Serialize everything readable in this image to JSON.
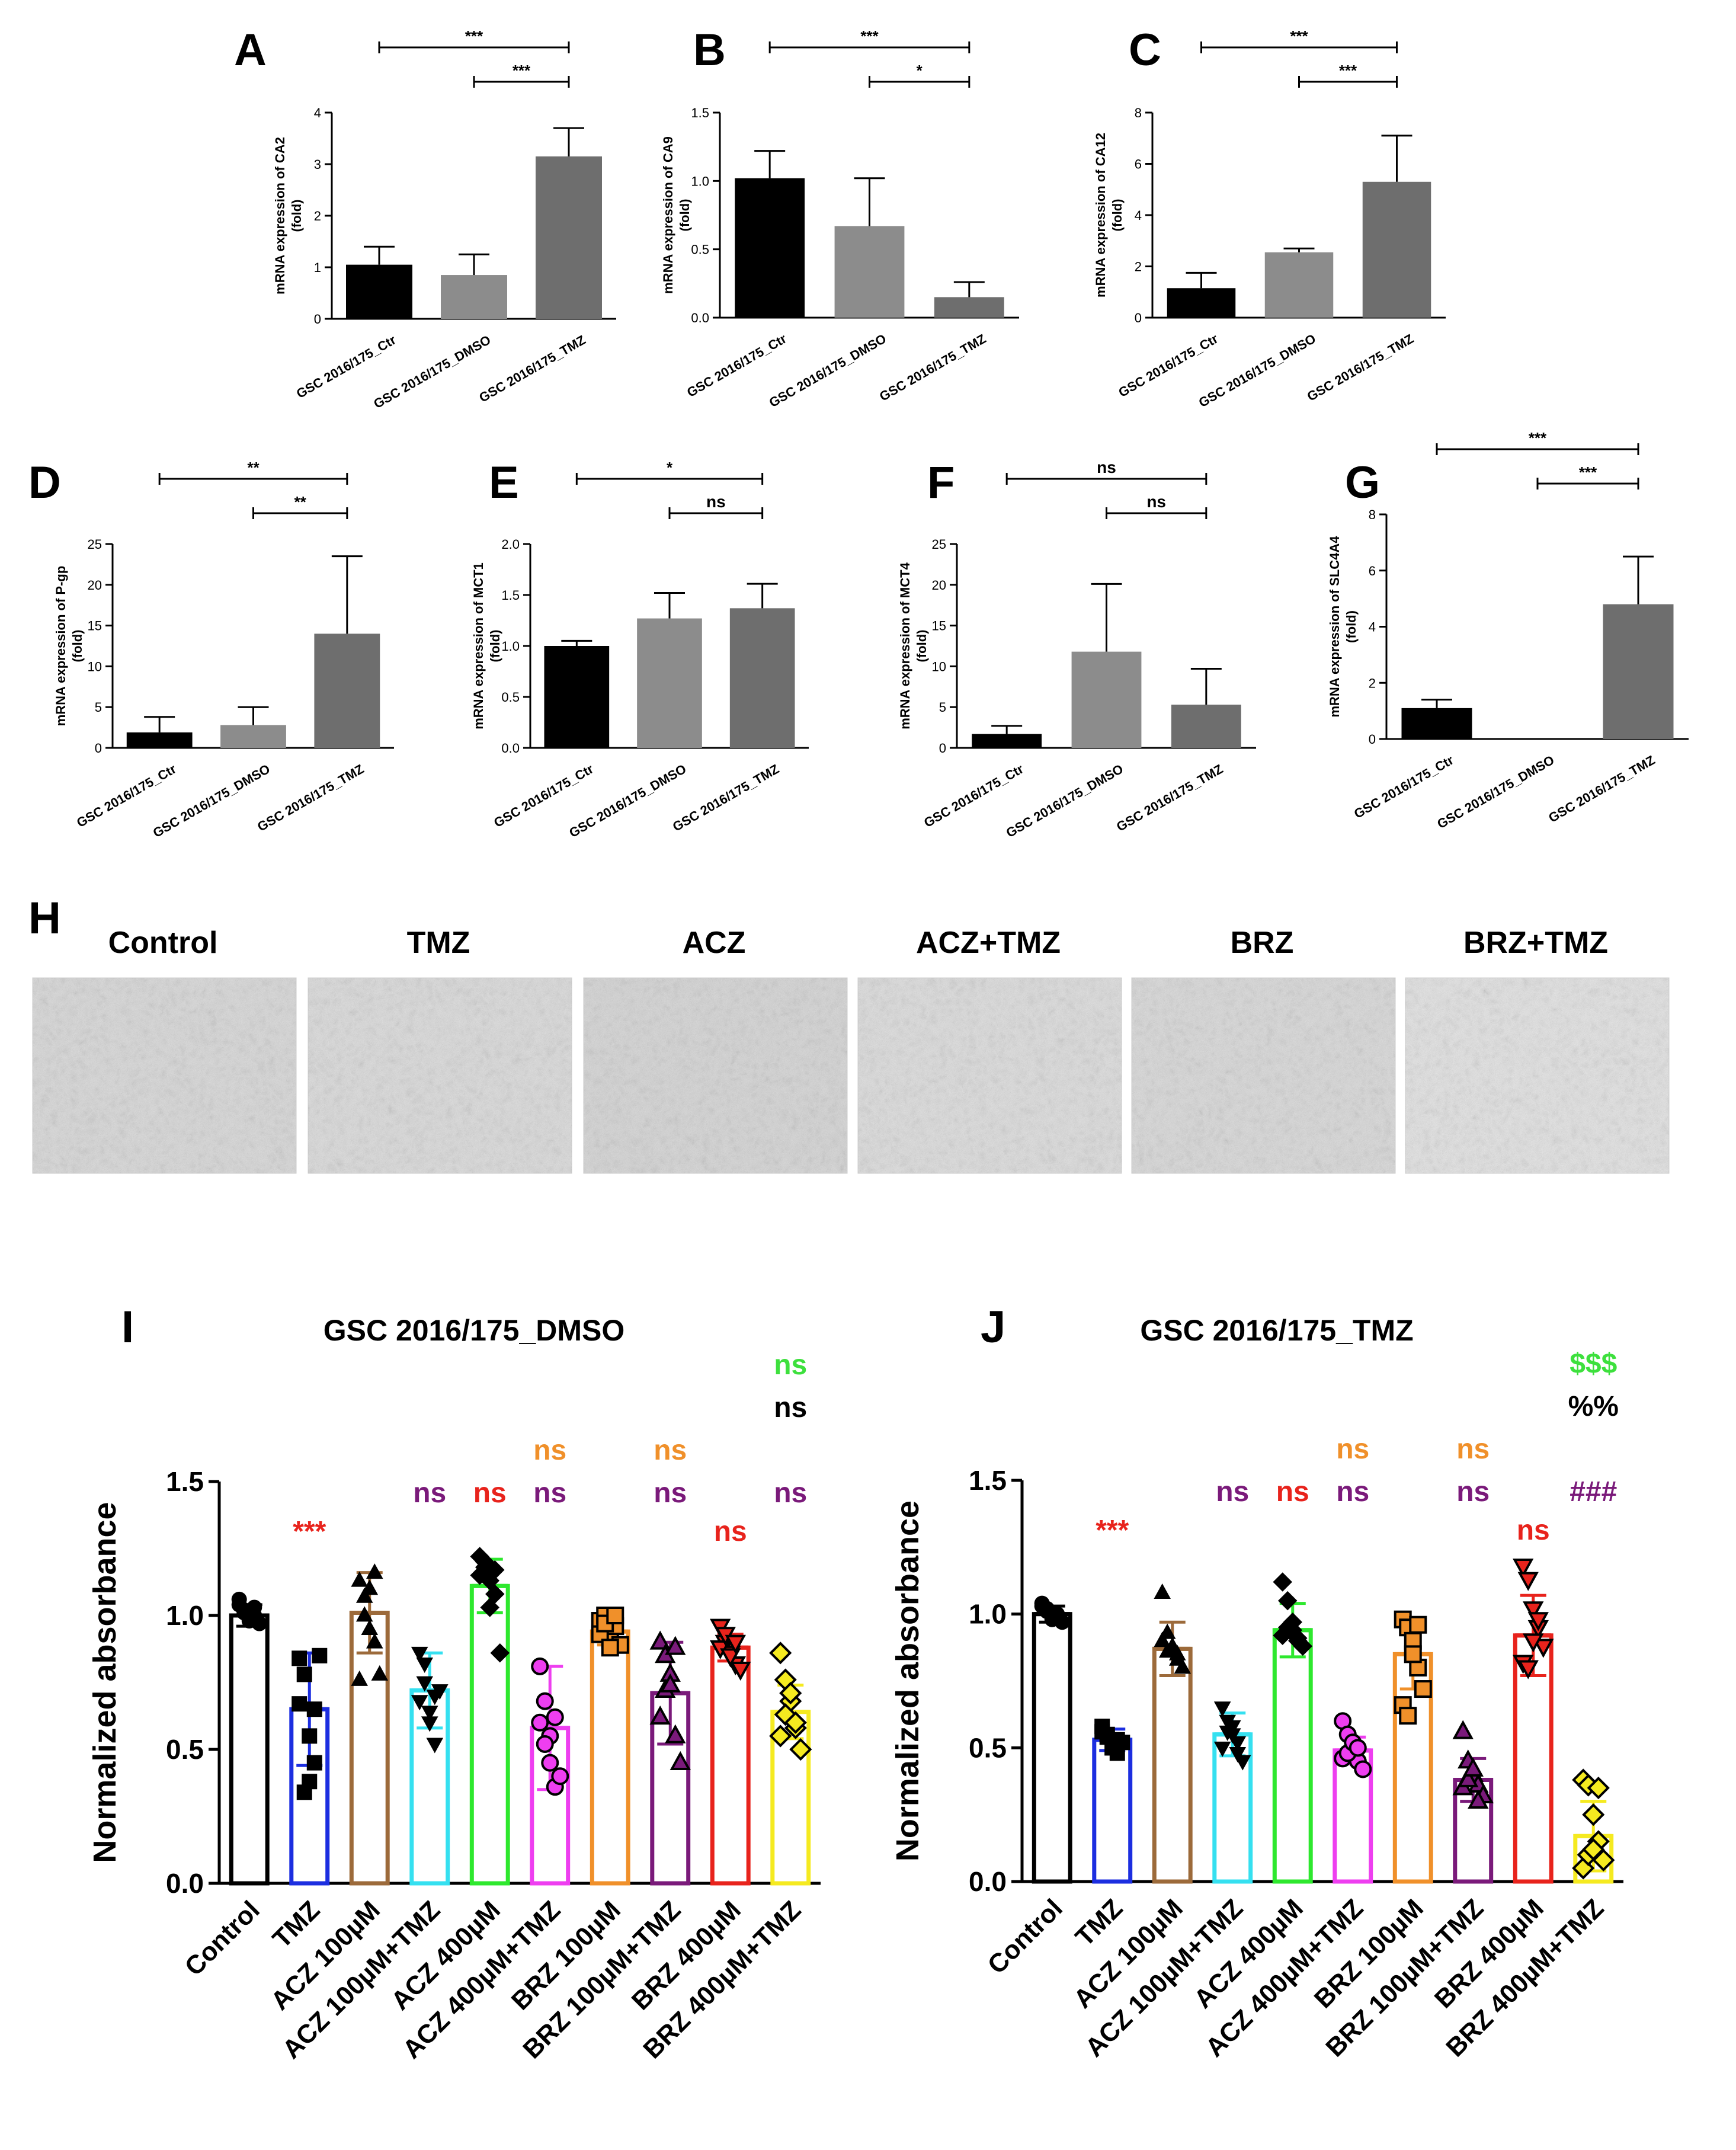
{
  "panel_h": {
    "letter": "H",
    "titles": [
      "Control",
      "TMZ",
      "ACZ",
      "ACZ+TMZ",
      "BRZ",
      "BRZ+TMZ"
    ],
    "photo_tones": [
      "#d9d9d9",
      "#dcdcdc",
      "#d6d6d6",
      "#dedede",
      "#dadada",
      "#e4e4e4"
    ]
  },
  "colors": {
    "dark": "#000000",
    "mid": "#8c8c8c",
    "light": "#6e6e6e",
    "red": "#e8231c",
    "green": "#3de03d",
    "orange": "#f0902a",
    "purple": "#7a1a7a",
    "i_bars": [
      "#000000",
      "#1c2ee0",
      "#9c6a3a",
      "#35e0f0",
      "#2ee82e",
      "#ee3ef0",
      "#f0902a",
      "#7a1a7a",
      "#e8231c",
      "#f5ea20"
    ]
  },
  "chart_data": [
    {
      "letter": "A",
      "type": "bar",
      "categories": [
        "GSC 2016/175_Ctr",
        "GSC 2016/175_DMSO",
        "GSC 2016/175_TMZ"
      ],
      "values": [
        1.05,
        0.85,
        3.15
      ],
      "errors": [
        0.35,
        0.4,
        0.55
      ],
      "ylabel": "mRNA expression of CA2",
      "ylabel2": "(fold)",
      "ylim": [
        0,
        4
      ],
      "yticks": [
        "0",
        "1",
        "2",
        "3",
        "4"
      ],
      "sig": [
        {
          "from": 0,
          "to": 2,
          "label": "***"
        },
        {
          "from": 1,
          "to": 2,
          "label": "***"
        }
      ]
    },
    {
      "letter": "B",
      "type": "bar",
      "categories": [
        "GSC 2016/175_Ctr",
        "GSC 2016/175_DMSO",
        "GSC 2016/175_TMZ"
      ],
      "values": [
        1.02,
        0.67,
        0.15
      ],
      "errors": [
        0.2,
        0.35,
        0.11
      ],
      "ylabel": "mRNA expression of CA9",
      "ylabel2": "(fold)",
      "ylim": [
        0,
        1.5
      ],
      "yticks": [
        "0.0",
        "0.5",
        "1.0",
        "1.5"
      ],
      "sig": [
        {
          "from": 0,
          "to": 2,
          "label": "***"
        },
        {
          "from": 1,
          "to": 2,
          "label": "*"
        }
      ]
    },
    {
      "letter": "C",
      "type": "bar",
      "categories": [
        "GSC 2016/175_Ctr",
        "GSC 2016/175_DMSO",
        "GSC 2016/175_TMZ"
      ],
      "values": [
        1.15,
        2.55,
        5.3
      ],
      "errors": [
        0.6,
        0.15,
        1.8
      ],
      "ylabel": "mRNA expression of CA12",
      "ylabel2": "(fold)",
      "ylim": [
        0,
        8
      ],
      "yticks": [
        "0",
        "2",
        "4",
        "6",
        "8"
      ],
      "sig": [
        {
          "from": 0,
          "to": 2,
          "label": "***"
        },
        {
          "from": 1,
          "to": 2,
          "label": "***"
        }
      ]
    },
    {
      "letter": "D",
      "type": "bar",
      "categories": [
        "GSC 2016/175_Ctr",
        "GSC 2016/175_DMSO",
        "GSC 2016/175_TMZ"
      ],
      "values": [
        1.9,
        2.8,
        14.0
      ],
      "errors": [
        1.9,
        2.2,
        9.5
      ],
      "ylabel": "mRNA expression of P-gp",
      "ylabel2": "(fold)",
      "ylim": [
        0,
        25
      ],
      "yticks": [
        "0",
        "5",
        "10",
        "15",
        "20",
        "25"
      ],
      "sig": [
        {
          "from": 0,
          "to": 2,
          "label": "**"
        },
        {
          "from": 1,
          "to": 2,
          "label": "**"
        }
      ]
    },
    {
      "letter": "E",
      "type": "bar",
      "categories": [
        "GSC 2016/175_Ctr",
        "GSC 2016/175_DMSO",
        "GSC 2016/175_TMZ"
      ],
      "values": [
        1.0,
        1.27,
        1.37
      ],
      "errors": [
        0.05,
        0.25,
        0.24
      ],
      "ylabel": "mRNA expression of MCT1",
      "ylabel2": "(fold)",
      "ylim": [
        0,
        2
      ],
      "yticks": [
        "0.0",
        "0.5",
        "1.0",
        "1.5",
        "2.0"
      ],
      "sig": [
        {
          "from": 0,
          "to": 2,
          "label": "*"
        },
        {
          "from": 1,
          "to": 2,
          "label": "ns"
        }
      ]
    },
    {
      "letter": "F",
      "type": "bar",
      "categories": [
        "GSC 2016/175_Ctr",
        "GSC 2016/175_DMSO",
        "GSC 2016/175_TMZ"
      ],
      "values": [
        1.7,
        11.8,
        5.3
      ],
      "errors": [
        1.0,
        8.3,
        4.4
      ],
      "ylabel": "mRNA expression of MCT4",
      "ylabel2": "(fold)",
      "ylim": [
        0,
        25
      ],
      "yticks": [
        "0",
        "5",
        "10",
        "15",
        "20",
        "25"
      ],
      "sig": [
        {
          "from": 0,
          "to": 2,
          "label": "ns"
        },
        {
          "from": 1,
          "to": 2,
          "label": "ns"
        }
      ]
    },
    {
      "letter": "G",
      "type": "bar",
      "categories": [
        "GSC 2016/175_Ctr",
        "GSC 2016/175_DMSO",
        "GSC 2016/175_TMZ"
      ],
      "values": [
        1.1,
        0.0,
        4.8
      ],
      "errors": [
        0.3,
        0.0,
        1.7
      ],
      "ylabel": "mRNA expression of SLC4A4",
      "ylabel2": "(fold)",
      "ylim": [
        0,
        8
      ],
      "yticks": [
        "0",
        "2",
        "4",
        "6",
        "8"
      ],
      "sig": [
        {
          "from": 0,
          "to": 2,
          "label": "***"
        },
        {
          "from": 1,
          "to": 2,
          "label": "***"
        }
      ]
    },
    {
      "letter": "I",
      "type": "bar",
      "title": "GSC 2016/175_DMSO",
      "ylabel": "Normalized absorbance",
      "ylim": [
        0,
        1.5
      ],
      "yticks": [
        "0.0",
        "0.5",
        "1.0",
        "1.5"
      ],
      "categories": [
        "Control",
        "TMZ",
        "ACZ 100µM",
        "ACZ 100µM+TMZ",
        "ACZ 400µM",
        "ACZ 400µM+TMZ",
        "BRZ 100µM",
        "BRZ 100µM+TMZ",
        "BRZ 400µM",
        "BRZ 400µM+TMZ"
      ],
      "values": [
        1.0,
        0.65,
        1.01,
        0.72,
        1.11,
        0.58,
        0.94,
        0.71,
        0.88,
        0.64
      ],
      "errors": [
        0.04,
        0.21,
        0.15,
        0.14,
        0.1,
        0.23,
        0.05,
        0.19,
        0.05,
        0.1
      ],
      "points": [
        [
          1.06,
          1.02,
          0.98,
          1.0,
          0.97,
          1.04,
          1.01,
          0.99,
          1.03
        ],
        [
          0.84,
          0.78,
          0.55,
          0.45,
          0.85,
          0.67,
          0.34,
          0.38,
          0.65
        ],
        [
          1.13,
          1.07,
          0.95,
          0.9,
          0.78,
          0.76,
          1.0,
          1.1,
          1.16
        ],
        [
          0.86,
          0.75,
          0.6,
          0.52,
          0.72,
          0.68,
          0.82,
          0.64,
          0.7
        ],
        [
          1.22,
          1.18,
          1.13,
          1.08,
          0.86,
          1.15,
          1.2,
          1.03,
          1.17
        ],
        [
          0.81,
          0.68,
          0.55,
          0.36,
          0.4,
          0.6,
          0.52,
          0.45,
          0.62
        ],
        [
          0.98,
          1.0,
          0.91,
          0.96,
          0.89,
          0.93,
          0.97,
          0.88,
          1.0
        ],
        [
          0.9,
          0.85,
          0.78,
          0.55,
          0.45,
          0.62,
          0.72,
          0.74,
          0.88
        ],
        [
          0.96,
          0.9,
          0.86,
          0.82,
          0.8,
          0.88,
          0.93,
          0.85,
          0.9
        ],
        [
          0.86,
          0.76,
          0.68,
          0.58,
          0.5,
          0.55,
          0.63,
          0.71,
          0.6
        ]
      ],
      "markers": [
        "circle",
        "square",
        "triangle",
        "triangle-down",
        "diamond",
        "circle",
        "square",
        "triangle",
        "triangle-down",
        "diamond"
      ],
      "annotations": [
        {
          "col": 1,
          "lines": [
            {
              "text": "***",
              "color": "red"
            }
          ]
        },
        {
          "col": 3,
          "lines": [
            {
              "text": "ns",
              "color": "purple"
            }
          ]
        },
        {
          "col": 4,
          "lines": [
            {
              "text": "ns",
              "color": "red"
            }
          ]
        },
        {
          "col": 5,
          "lines": [
            {
              "text": "ns",
              "color": "orange"
            },
            {
              "text": "ns",
              "color": "purple"
            }
          ]
        },
        {
          "col": 7,
          "lines": [
            {
              "text": "ns",
              "color": "orange"
            },
            {
              "text": "ns",
              "color": "purple"
            }
          ]
        },
        {
          "col": 8,
          "lines": [
            {
              "text": "ns",
              "color": "red"
            }
          ]
        },
        {
          "col": 9,
          "lines": [
            {
              "text": "ns",
              "color": "green"
            },
            {
              "text": "ns",
              "color": "dark"
            },
            {
              "text": "",
              "color": "dark"
            },
            {
              "text": "ns",
              "color": "purple"
            }
          ]
        }
      ]
    },
    {
      "letter": "J",
      "type": "bar",
      "title": "GSC 2016/175_TMZ",
      "ylabel": "Normalized absorbance",
      "ylim": [
        0,
        1.5
      ],
      "yticks": [
        "0.0",
        "0.5",
        "1.0",
        "1.5"
      ],
      "categories": [
        "Control",
        "TMZ",
        "ACZ 100µM",
        "ACZ 100µM+TMZ",
        "ACZ 400µM",
        "ACZ 400µM+TMZ",
        "BRZ 100µM",
        "BRZ 100µM+TMZ",
        "BRZ 400µM",
        "BRZ 400µM+TMZ"
      ],
      "values": [
        1.0,
        0.53,
        0.87,
        0.55,
        0.94,
        0.49,
        0.85,
        0.38,
        0.92,
        0.17
      ],
      "errors": [
        0.03,
        0.04,
        0.1,
        0.08,
        0.1,
        0.05,
        0.13,
        0.08,
        0.15,
        0.13
      ],
      "points": [
        [
          1.04,
          1.02,
          0.98,
          1.0,
          0.97,
          1.03,
          1.01,
          0.99,
          1.0
        ],
        [
          0.58,
          0.55,
          0.5,
          0.48,
          0.52,
          0.56,
          0.54,
          0.5,
          0.53
        ],
        [
          1.08,
          0.93,
          0.88,
          0.85,
          0.8,
          0.9,
          0.86,
          0.87,
          0.83
        ],
        [
          0.65,
          0.6,
          0.55,
          0.48,
          0.45,
          0.5,
          0.56,
          0.58,
          0.52
        ],
        [
          1.12,
          1.05,
          0.97,
          0.9,
          0.88,
          0.92,
          0.95,
          0.94,
          0.91
        ],
        [
          0.6,
          0.55,
          0.5,
          0.45,
          0.42,
          0.46,
          0.48,
          0.52,
          0.5
        ],
        [
          0.98,
          0.95,
          0.9,
          0.8,
          0.72,
          0.66,
          0.62,
          0.85,
          0.96
        ],
        [
          0.56,
          0.45,
          0.4,
          0.36,
          0.32,
          0.35,
          0.38,
          0.42,
          0.3
        ],
        [
          1.18,
          1.13,
          1.02,
          0.95,
          0.88,
          0.82,
          0.8,
          0.9,
          0.98
        ],
        [
          0.38,
          0.36,
          0.25,
          0.15,
          0.08,
          0.05,
          0.1,
          0.12,
          0.35
        ]
      ],
      "markers": [
        "circle",
        "square",
        "triangle",
        "triangle-down",
        "diamond",
        "circle",
        "square",
        "triangle",
        "triangle-down",
        "diamond"
      ],
      "annotations": [
        {
          "col": 1,
          "lines": [
            {
              "text": "***",
              "color": "red"
            }
          ]
        },
        {
          "col": 3,
          "lines": [
            {
              "text": "ns",
              "color": "purple"
            }
          ]
        },
        {
          "col": 4,
          "lines": [
            {
              "text": "ns",
              "color": "red"
            }
          ]
        },
        {
          "col": 5,
          "lines": [
            {
              "text": "ns",
              "color": "orange"
            },
            {
              "text": "ns",
              "color": "purple"
            }
          ]
        },
        {
          "col": 7,
          "lines": [
            {
              "text": "ns",
              "color": "orange"
            },
            {
              "text": "ns",
              "color": "purple"
            }
          ]
        },
        {
          "col": 8,
          "lines": [
            {
              "text": "ns",
              "color": "red"
            }
          ]
        },
        {
          "col": 9,
          "lines": [
            {
              "text": "$$$",
              "color": "green"
            },
            {
              "text": "%%",
              "color": "dark"
            },
            {
              "text": "",
              "color": "dark"
            },
            {
              "text": "###",
              "color": "purple"
            }
          ]
        }
      ]
    }
  ]
}
